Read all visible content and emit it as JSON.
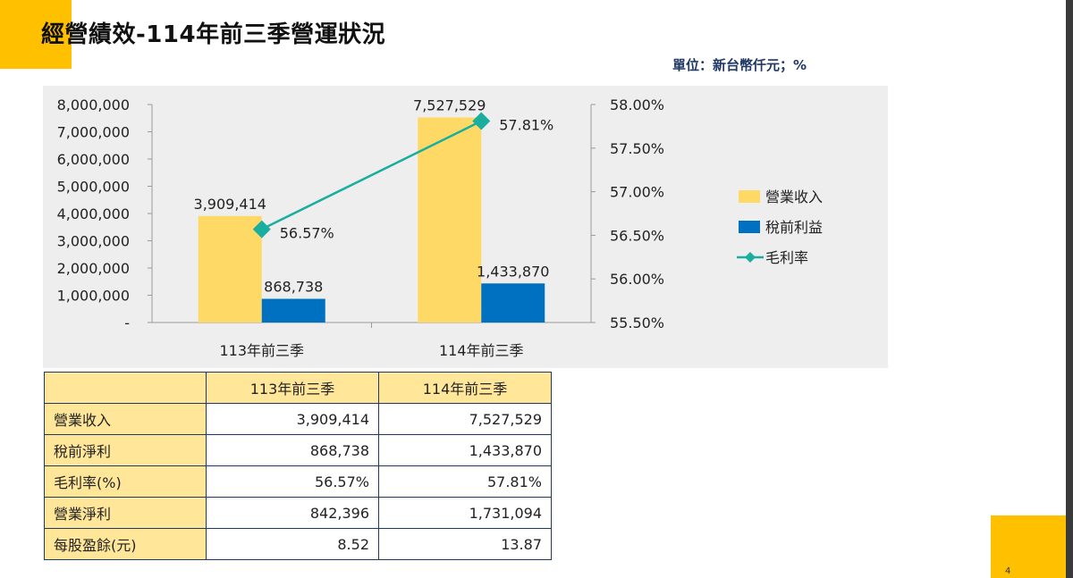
{
  "title": "經營績效-114年前三季營運狀況",
  "unit_label": "單位：新台幣仟元；%",
  "chart_data": {
    "type": "bar",
    "categories": [
      "113年前三季",
      "114年前三季"
    ],
    "series": [
      {
        "name": "營業收入",
        "kind": "bar",
        "axis": "left",
        "values": [
          3909414,
          7527529
        ],
        "labels": [
          "3,909,414",
          "7,527,529"
        ],
        "color": "#FFD966"
      },
      {
        "name": "稅前利益",
        "kind": "bar",
        "axis": "left",
        "values": [
          868738,
          1433870
        ],
        "labels": [
          "868,738",
          "1,433,870"
        ],
        "color": "#0070C0"
      },
      {
        "name": "毛利率",
        "kind": "line",
        "axis": "right",
        "values": [
          56.57,
          57.81
        ],
        "labels": [
          "56.57%",
          "57.81%"
        ],
        "color": "#1AAE9F"
      }
    ],
    "y_left": {
      "lim": [
        0,
        8000000
      ],
      "ticks": [
        0,
        1000000,
        2000000,
        3000000,
        4000000,
        5000000,
        6000000,
        7000000,
        8000000
      ],
      "tick_labels": [
        "-",
        "1,000,000",
        "2,000,000",
        "3,000,000",
        "4,000,000",
        "5,000,000",
        "6,000,000",
        "7,000,000",
        "8,000,000"
      ]
    },
    "y_right": {
      "lim": [
        55.5,
        58.0
      ],
      "ticks": [
        55.5,
        56.0,
        56.5,
        57.0,
        57.5,
        58.0
      ],
      "tick_labels": [
        "55.50%",
        "56.00%",
        "56.50%",
        "57.00%",
        "57.50%",
        "58.00%"
      ]
    },
    "legend_position": "right",
    "grid": false,
    "title": "",
    "xlabel": "",
    "ylabel": ""
  },
  "table": {
    "columns": [
      "",
      "113年前三季",
      "114年前三季"
    ],
    "rows": [
      {
        "label": "營業收入",
        "values": [
          "3,909,414",
          "7,527,529"
        ]
      },
      {
        "label": "稅前淨利",
        "values": [
          "868,738",
          "1,433,870"
        ]
      },
      {
        "label": "毛利率(%)",
        "values": [
          "56.57%",
          "57.81%"
        ]
      },
      {
        "label": "營業淨利",
        "values": [
          "842,396",
          "1,731,094"
        ]
      },
      {
        "label": "每股盈餘(元)",
        "values": [
          "8.52",
          "13.87"
        ]
      }
    ]
  },
  "page_number": "4",
  "colors": {
    "accent": "#FFC000",
    "table_header": "#FFE699",
    "border": "#1F3864",
    "chart_bg": "#EEEEEE"
  }
}
